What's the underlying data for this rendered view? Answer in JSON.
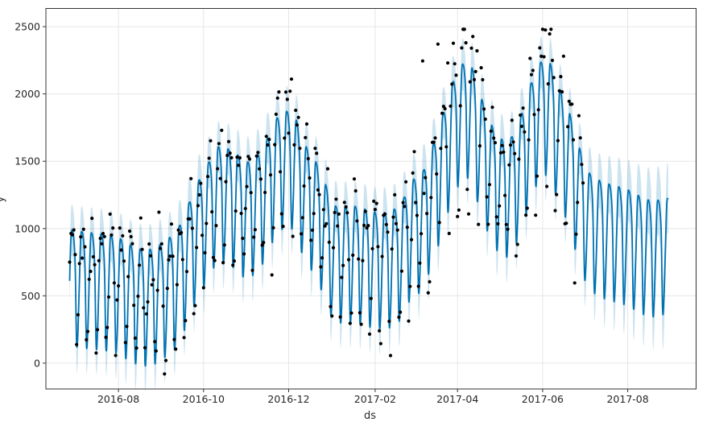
{
  "style": {
    "line_color": "#0072B2",
    "band_color": "#0072B2",
    "band_opacity": 0.2,
    "dot_color": "#000000",
    "grid_color": "#e6e6e6",
    "spine_color": "#333333",
    "tick_color": "#333333",
    "text_color": "#262626",
    "background": "#ffffff"
  },
  "chart_data": {
    "type": "line",
    "title": "",
    "xlabel": "ds",
    "ylabel": "y",
    "legend": "none",
    "grid": true,
    "description": "Prophet forecast plot: fitted/forecast line (yhat) with weekly seasonality, uncertainty interval band, and observed data points (black dots).",
    "xlim": [
      "2016-06-10",
      "2017-09-19"
    ],
    "ylim": [
      -192,
      2635
    ],
    "xticks": [
      {
        "date": "2016-08-01",
        "label": "2016-08"
      },
      {
        "date": "2016-10-01",
        "label": "2016-10"
      },
      {
        "date": "2016-12-01",
        "label": "2016-12"
      },
      {
        "date": "2017-02-01",
        "label": "2017-02"
      },
      {
        "date": "2017-04-01",
        "label": "2017-04"
      },
      {
        "date": "2017-06-01",
        "label": "2017-06"
      },
      {
        "date": "2017-08-01",
        "label": "2017-08"
      }
    ],
    "yticks": [
      0,
      500,
      1000,
      1500,
      2000,
      2500
    ],
    "series_start": "2016-06-27",
    "observations_end": "2017-06-30",
    "forecast_end": "2017-08-30",
    "weekly_amplitude": 830,
    "weekday_drop_profile": [
      0.45,
      0.05,
      0.0,
      0.08,
      0.3,
      1.0,
      0.88
    ],
    "uncertainty_halfwidth": {
      "history": 190,
      "forecast_end": 260
    },
    "weekly_peak_anchors": [
      [
        "2016-06-27",
        985
      ],
      [
        "2016-07-04",
        975
      ],
      [
        "2016-07-11",
        965
      ],
      [
        "2016-07-18",
        958
      ],
      [
        "2016-07-25",
        948
      ],
      [
        "2016-08-01",
        930
      ],
      [
        "2016-08-08",
        880
      ],
      [
        "2016-08-15",
        845
      ],
      [
        "2016-08-22",
        835
      ],
      [
        "2016-08-29",
        860
      ],
      [
        "2016-09-05",
        915
      ],
      [
        "2016-09-12",
        975
      ],
      [
        "2016-09-19",
        1145
      ],
      [
        "2016-09-26",
        1325
      ],
      [
        "2016-10-03",
        1450
      ],
      [
        "2016-10-10",
        1605
      ],
      [
        "2016-10-17",
        1595
      ],
      [
        "2016-10-24",
        1560
      ],
      [
        "2016-10-31",
        1480
      ],
      [
        "2016-11-07",
        1520
      ],
      [
        "2016-11-14",
        1620
      ],
      [
        "2016-11-21",
        1800
      ],
      [
        "2016-11-28",
        1870
      ],
      [
        "2016-12-05",
        1850
      ],
      [
        "2016-12-12",
        1625
      ],
      [
        "2016-12-19",
        1525
      ],
      [
        "2016-12-26",
        1365
      ],
      [
        "2017-01-02",
        1165
      ],
      [
        "2017-01-09",
        1155
      ],
      [
        "2017-01-16",
        1165
      ],
      [
        "2017-01-23",
        1145
      ],
      [
        "2017-01-30",
        1120
      ],
      [
        "2017-02-06",
        1110
      ],
      [
        "2017-02-13",
        1125
      ],
      [
        "2017-02-20",
        1185
      ],
      [
        "2017-02-27",
        1355
      ],
      [
        "2017-03-06",
        1385
      ],
      [
        "2017-03-13",
        1565
      ],
      [
        "2017-03-20",
        1785
      ],
      [
        "2017-03-27",
        2045
      ],
      [
        "2017-04-03",
        2210
      ],
      [
        "2017-04-10",
        2240
      ],
      [
        "2017-04-17",
        2000
      ],
      [
        "2017-04-24",
        1790
      ],
      [
        "2017-05-01",
        1665
      ],
      [
        "2017-05-08",
        1640
      ],
      [
        "2017-05-15",
        1785
      ],
      [
        "2017-05-22",
        2025
      ],
      [
        "2017-05-29",
        2220
      ],
      [
        "2017-06-05",
        2265
      ],
      [
        "2017-06-12",
        2060
      ],
      [
        "2017-06-19",
        1905
      ],
      [
        "2017-06-26",
        1640
      ],
      [
        "2017-07-03",
        1420
      ],
      [
        "2017-07-10",
        1360
      ],
      [
        "2017-07-17",
        1330
      ],
      [
        "2017-07-24",
        1310
      ],
      [
        "2017-07-31",
        1290
      ],
      [
        "2017-08-07",
        1250
      ],
      [
        "2017-08-14",
        1210
      ],
      [
        "2017-08-21",
        1200
      ],
      [
        "2017-08-28",
        1225
      ]
    ],
    "observation_outliers": [
      [
        "2016-10-14",
        1730
      ],
      [
        "2016-12-02",
        2020
      ],
      [
        "2016-12-03",
        2110
      ],
      [
        "2016-12-31",
        420
      ],
      [
        "2017-01-01",
        350
      ],
      [
        "2017-03-07",
        2245
      ],
      [
        "2017-03-18",
        2370
      ],
      [
        "2017-03-25",
        2230
      ],
      [
        "2017-04-07",
        2380
      ],
      [
        "2017-04-11",
        2340
      ],
      [
        "2017-04-15",
        2320
      ],
      [
        "2017-04-30",
        1035
      ],
      [
        "2017-05-06",
        1030
      ],
      [
        "2017-06-03",
        2475
      ],
      [
        "2017-06-16",
        2280
      ]
    ]
  }
}
